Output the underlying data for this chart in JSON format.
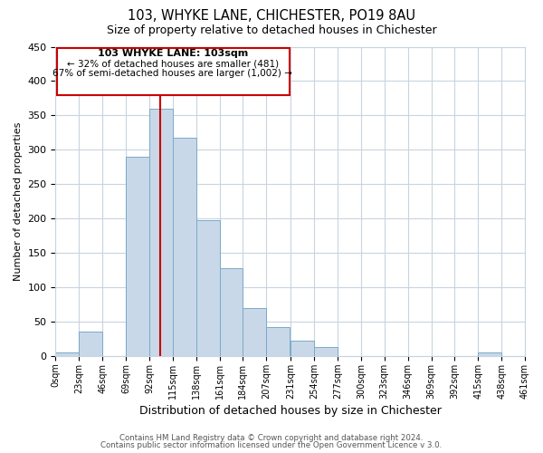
{
  "title": "103, WHYKE LANE, CHICHESTER, PO19 8AU",
  "subtitle": "Size of property relative to detached houses in Chichester",
  "xlabel": "Distribution of detached houses by size in Chichester",
  "ylabel": "Number of detached properties",
  "bar_color": "#c8d8e8",
  "bar_edge_color": "#7aaac8",
  "grid_color": "#c8d4e0",
  "background_color": "#ffffff",
  "vline_x": 103,
  "vline_color": "#cc0000",
  "bin_edges": [
    0,
    23,
    46,
    69,
    92,
    115,
    138,
    161,
    184,
    207,
    231,
    254,
    277,
    300,
    323,
    346,
    369,
    392,
    415,
    438,
    461
  ],
  "bin_counts": [
    5,
    35,
    0,
    290,
    360,
    318,
    197,
    128,
    70,
    42,
    22,
    13,
    0,
    0,
    0,
    0,
    0,
    0,
    5,
    0
  ],
  "tick_labels": [
    "0sqm",
    "23sqm",
    "46sqm",
    "69sqm",
    "92sqm",
    "115sqm",
    "138sqm",
    "161sqm",
    "184sqm",
    "207sqm",
    "231sqm",
    "254sqm",
    "277sqm",
    "300sqm",
    "323sqm",
    "346sqm",
    "369sqm",
    "392sqm",
    "415sqm",
    "438sqm",
    "461sqm"
  ],
  "ylim": [
    0,
    450
  ],
  "yticks": [
    0,
    50,
    100,
    150,
    200,
    250,
    300,
    350,
    400,
    450
  ],
  "annotation_title": "103 WHYKE LANE: 103sqm",
  "annotation_line1": "← 32% of detached houses are smaller (481)",
  "annotation_line2": "67% of semi-detached houses are larger (1,002) →",
  "footer_line1": "Contains HM Land Registry data © Crown copyright and database right 2024.",
  "footer_line2": "Contains public sector information licensed under the Open Government Licence v 3.0."
}
